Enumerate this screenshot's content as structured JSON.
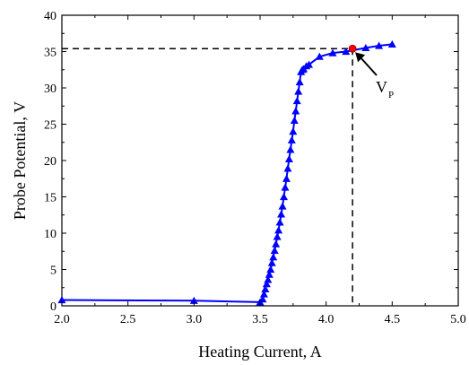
{
  "chart_data": {
    "type": "line",
    "xlabel": "Heating Current, A",
    "ylabel": "Probe Potential, V",
    "xlim": [
      2.0,
      5.0
    ],
    "ylim": [
      0,
      40
    ],
    "x_ticks": [
      "2.0",
      "2.5",
      "3.0",
      "3.5",
      "4.0",
      "4.5",
      "5.0"
    ],
    "y_ticks": [
      "0",
      "5",
      "10",
      "15",
      "20",
      "25",
      "30",
      "35",
      "40"
    ],
    "grid": false,
    "series": [
      {
        "marker": "triangle",
        "color": "#0000ff",
        "line_style": "solid",
        "x": [
          2.0,
          3.0,
          3.5,
          3.52,
          3.53,
          3.54,
          3.55,
          3.56,
          3.57,
          3.58,
          3.59,
          3.6,
          3.61,
          3.62,
          3.63,
          3.64,
          3.65,
          3.66,
          3.67,
          3.68,
          3.69,
          3.7,
          3.71,
          3.72,
          3.73,
          3.74,
          3.75,
          3.76,
          3.77,
          3.78,
          3.79,
          3.8,
          3.81,
          3.82,
          3.83,
          3.85,
          3.87,
          3.95,
          4.05,
          4.15,
          4.3,
          4.4,
          4.5
        ],
        "y": [
          0.8,
          0.7,
          0.5,
          0.9,
          1.6,
          2.3,
          3.0,
          3.6,
          4.3,
          5.0,
          5.9,
          6.7,
          7.6,
          8.5,
          9.5,
          10.4,
          11.5,
          12.6,
          13.7,
          15.0,
          16.3,
          17.5,
          18.9,
          20.2,
          21.5,
          22.8,
          24.0,
          25.5,
          26.8,
          28.2,
          29.5,
          30.8,
          32.2,
          32.5,
          32.6,
          33.0,
          33.2,
          34.3,
          34.8,
          35.0,
          35.5,
          35.8,
          36.0
        ]
      }
    ],
    "reference_point": {
      "label_main": "V",
      "label_sub": "P",
      "x": 4.2,
      "y": 35.4,
      "color": "#ff0000"
    },
    "reference_lines": {
      "style": "dashed",
      "color": "#000000"
    }
  }
}
